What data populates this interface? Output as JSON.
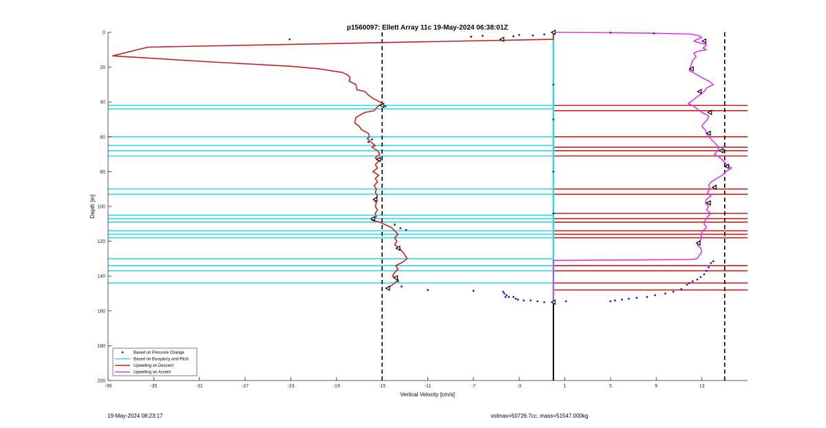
{
  "chart_data": {
    "type": "line",
    "title": "p1560097: Ellett Array 11c 19-May-2024 06:38:01Z",
    "xlabel": "Vertical Velocity [cm/s]",
    "ylabel": "Depth [m]",
    "xlim": [
      -39,
      17
    ],
    "ylim": [
      0,
      200
    ],
    "y_reversed": true,
    "xticks": [
      -39,
      -35,
      -31,
      -27,
      -23,
      -19,
      -15,
      -11,
      -7,
      -3,
      1,
      5,
      9,
      13
    ],
    "yticks": [
      0,
      20,
      40,
      60,
      80,
      100,
      120,
      140,
      160,
      180,
      200
    ],
    "grid": false,
    "legend_position": "bottom-left",
    "legend": [
      {
        "label": "Based on Pressure Change",
        "color": "#1a1acc",
        "style": "dot"
      },
      {
        "label": "Based on Buoyancy and Pitch",
        "color": "#33d6e6",
        "style": "line"
      },
      {
        "label": "Upwelling on Descent",
        "color": "#c81e1e",
        "style": "line"
      },
      {
        "label": "Upwelling on Ascent",
        "color": "#e632e6",
        "style": "line"
      }
    ],
    "threshold_lines": [
      -15,
      15
    ],
    "zero_line": {
      "x": 0,
      "color_above": "#33d6e6",
      "color_below": "#000000",
      "split_depth": 155
    },
    "upwelling_descent": {
      "color": "#c81e1e",
      "points": [
        [
          0,
          0
        ],
        [
          0,
          4
        ],
        [
          -35.5,
          8.5
        ],
        [
          -38.6,
          13.5
        ],
        [
          -30,
          17
        ],
        [
          -23,
          19.5
        ],
        [
          -20.5,
          21
        ],
        [
          -19.5,
          22
        ],
        [
          -18.5,
          23
        ],
        [
          -18,
          24.5
        ],
        [
          -17.8,
          26
        ],
        [
          -17.9,
          28
        ],
        [
          -17.3,
          30
        ],
        [
          -17.2,
          33
        ],
        [
          -16.5,
          34
        ],
        [
          -16.2,
          36
        ],
        [
          -15.8,
          38
        ],
        [
          -15.2,
          40
        ],
        [
          -14.9,
          41
        ],
        [
          -15.3,
          42
        ],
        [
          -15.7,
          45
        ],
        [
          -16.5,
          46
        ],
        [
          -16.8,
          47
        ],
        [
          -17.3,
          49
        ],
        [
          -17.4,
          52
        ],
        [
          -17,
          54
        ],
        [
          -16.8,
          56
        ],
        [
          -16.2,
          58
        ],
        [
          -16.1,
          60
        ],
        [
          -16.3,
          61
        ],
        [
          -16,
          63
        ],
        [
          -15.6,
          65
        ],
        [
          -15.9,
          66
        ],
        [
          -15.4,
          68
        ],
        [
          -15.2,
          70
        ],
        [
          -15.6,
          72
        ],
        [
          -15.3,
          74
        ],
        [
          -15.6,
          76
        ],
        [
          -15.4,
          78
        ],
        [
          -15.8,
          80
        ],
        [
          -15.3,
          82
        ],
        [
          -15.6,
          84
        ],
        [
          -15.4,
          86
        ],
        [
          -15.7,
          88
        ],
        [
          -15.5,
          90
        ],
        [
          -15.6,
          92
        ],
        [
          -15.4,
          94
        ],
        [
          -15.7,
          96
        ],
        [
          -15.5,
          98
        ],
        [
          -15.6,
          100
        ],
        [
          -15.4,
          102
        ],
        [
          -15.6,
          104
        ],
        [
          -15.5,
          106
        ],
        [
          -15.9,
          108
        ],
        [
          -15.2,
          109
        ],
        [
          -14.9,
          110
        ],
        [
          -14.2,
          112
        ],
        [
          -13.9,
          114
        ],
        [
          -13.6,
          116
        ],
        [
          -13.9,
          118
        ],
        [
          -13.7,
          120
        ],
        [
          -13.9,
          122
        ],
        [
          -13.5,
          124
        ],
        [
          -13.2,
          126
        ],
        [
          -13.0,
          128
        ],
        [
          -12.8,
          130
        ],
        [
          -13.2,
          132
        ],
        [
          -13.8,
          134
        ],
        [
          -13.6,
          136
        ],
        [
          -13.9,
          138
        ],
        [
          -14.1,
          140
        ],
        [
          -13.6,
          142
        ],
        [
          -13.9,
          144
        ],
        [
          -14.3,
          146
        ],
        [
          -14.5,
          147
        ]
      ]
    },
    "upwelling_ascent": {
      "color": "#e632e6",
      "points": [
        [
          0,
          0
        ],
        [
          5,
          0.2
        ],
        [
          9,
          0.5
        ],
        [
          12,
          1
        ],
        [
          12.8,
          2
        ],
        [
          13,
          3
        ],
        [
          12.6,
          4
        ],
        [
          12.3,
          5
        ],
        [
          12.8,
          6
        ],
        [
          13.4,
          7
        ],
        [
          13.3,
          8
        ],
        [
          13.1,
          9
        ],
        [
          13.4,
          10
        ],
        [
          12.6,
          11
        ],
        [
          12.3,
          12
        ],
        [
          12.5,
          14
        ],
        [
          12.2,
          16
        ],
        [
          12.1,
          18
        ],
        [
          12,
          20
        ],
        [
          11.9,
          22
        ],
        [
          12.5,
          24
        ],
        [
          13,
          26
        ],
        [
          13.6,
          28
        ],
        [
          14,
          30
        ],
        [
          13.4,
          32
        ],
        [
          13.2,
          34
        ],
        [
          12.8,
          36
        ],
        [
          12.4,
          38
        ],
        [
          12,
          40
        ],
        [
          11.8,
          41
        ],
        [
          12.2,
          42
        ],
        [
          12.6,
          44
        ],
        [
          13,
          46
        ],
        [
          13.6,
          48
        ],
        [
          13.5,
          50
        ],
        [
          13.2,
          52
        ],
        [
          13.0,
          54
        ],
        [
          13.3,
          56
        ],
        [
          13.4,
          58
        ],
        [
          13.6,
          60
        ],
        [
          13.9,
          62
        ],
        [
          14.2,
          64
        ],
        [
          14.5,
          66
        ],
        [
          14.4,
          68
        ],
        [
          14.1,
          70
        ],
        [
          14.6,
          72
        ],
        [
          14.9,
          74
        ],
        [
          15.2,
          76
        ],
        [
          15.6,
          78
        ],
        [
          15.1,
          80
        ],
        [
          14.8,
          82
        ],
        [
          14.3,
          84
        ],
        [
          13.8,
          86
        ],
        [
          13.6,
          88
        ],
        [
          13.7,
          90
        ],
        [
          13.5,
          92
        ],
        [
          13.8,
          94
        ],
        [
          13.4,
          96
        ],
        [
          13.3,
          98
        ],
        [
          13.6,
          100
        ],
        [
          13.4,
          102
        ],
        [
          13.8,
          104
        ],
        [
          13.5,
          106
        ],
        [
          13.3,
          108
        ],
        [
          13.2,
          110
        ],
        [
          13.4,
          112
        ],
        [
          13.1,
          114
        ],
        [
          12.9,
          116
        ],
        [
          13.0,
          118
        ],
        [
          12.8,
          120
        ],
        [
          12.6,
          122
        ],
        [
          12.9,
          124
        ],
        [
          13.0,
          126
        ],
        [
          12.8,
          128
        ],
        [
          12.6,
          130
        ],
        [
          12,
          130.5
        ],
        [
          6,
          130.8
        ],
        [
          0,
          131
        ],
        [
          0,
          155
        ]
      ]
    },
    "buoyancy_pitch_segments": {
      "color": "#33d6e6",
      "x_from": -39,
      "x_to": 0,
      "depths": [
        42,
        44,
        60,
        65,
        68,
        71,
        90,
        93,
        105,
        107,
        109,
        114,
        116,
        118,
        130,
        134,
        137,
        144
      ]
    },
    "descent_segments": {
      "color": "#c81e1e",
      "x_from": 0,
      "x_to": 17,
      "depths": [
        42,
        45,
        60,
        66,
        68,
        71,
        90,
        93,
        104,
        107,
        109,
        114,
        116,
        118,
        134,
        137,
        144,
        148
      ]
    },
    "pressure_change_points": {
      "color": "#1a1acc",
      "points": [
        [
          -23.1,
          4
        ],
        [
          -7.2,
          2.5
        ],
        [
          -6.2,
          2
        ],
        [
          -3.5,
          2.3
        ],
        [
          -3.0,
          1.5
        ],
        [
          -1.8,
          1.8
        ],
        [
          -0.8,
          1.2
        ],
        [
          5,
          0.2
        ],
        [
          8.8,
          0.6
        ],
        [
          -14.7,
          42.5
        ],
        [
          -16.2,
          63
        ],
        [
          -15.9,
          61.5
        ],
        [
          -13.9,
          110.5
        ],
        [
          -13.4,
          112.5
        ],
        [
          -12.9,
          113.5
        ],
        [
          -13.6,
          143
        ],
        [
          -13.3,
          146
        ],
        [
          -11,
          148
        ],
        [
          -7,
          148.5
        ],
        [
          -4.4,
          149
        ],
        [
          -4.3,
          150
        ],
        [
          -4.1,
          151
        ],
        [
          -4.2,
          152
        ],
        [
          -3.9,
          152
        ],
        [
          -3.5,
          152
        ],
        [
          -3.3,
          153
        ],
        [
          -3.1,
          153.5
        ],
        [
          -2.6,
          154
        ],
        [
          -2.0,
          154
        ],
        [
          -1.4,
          154.5
        ],
        [
          -0.8,
          155
        ],
        [
          1.1,
          154.5
        ],
        [
          5.0,
          154.5
        ],
        [
          5.4,
          154
        ],
        [
          6.0,
          153.5
        ],
        [
          6.6,
          153
        ],
        [
          7.3,
          152.5
        ],
        [
          8.2,
          152
        ],
        [
          8.9,
          151
        ],
        [
          9.8,
          150
        ],
        [
          10.5,
          149
        ],
        [
          11.2,
          147.5
        ],
        [
          11.7,
          145
        ],
        [
          11.9,
          144
        ],
        [
          12.2,
          143
        ],
        [
          12.6,
          142
        ],
        [
          12.9,
          140.5
        ],
        [
          13.2,
          139
        ],
        [
          13.4,
          137
        ],
        [
          13.6,
          135
        ],
        [
          13.8,
          132.5
        ],
        [
          14.0,
          131.5
        ],
        [
          0,
          104
        ],
        [
          0,
          80
        ],
        [
          0,
          50
        ],
        [
          0,
          30
        ]
      ]
    },
    "markers": {
      "color": "#000000",
      "points": [
        [
          0,
          0
        ],
        [
          -4.5,
          4
        ],
        [
          -15,
          42
        ],
        [
          -15.3,
          73
        ],
        [
          -15.6,
          96
        ],
        [
          -15.8,
          107
        ],
        [
          -13.6,
          124
        ],
        [
          -13.8,
          141
        ],
        [
          -14.5,
          147
        ],
        [
          0,
          155
        ],
        [
          13.2,
          5
        ],
        [
          12.1,
          21
        ],
        [
          12.8,
          34
        ],
        [
          13.7,
          46
        ],
        [
          13.6,
          58
        ],
        [
          14.7,
          68
        ],
        [
          15.2,
          77
        ],
        [
          14.1,
          89
        ],
        [
          13.6,
          98
        ],
        [
          12.7,
          121
        ]
      ]
    }
  },
  "footer": {
    "timestamp": "19-May-2024 08:23:17",
    "info": "volmax=50726.7cc, mass=51547.000kg"
  }
}
